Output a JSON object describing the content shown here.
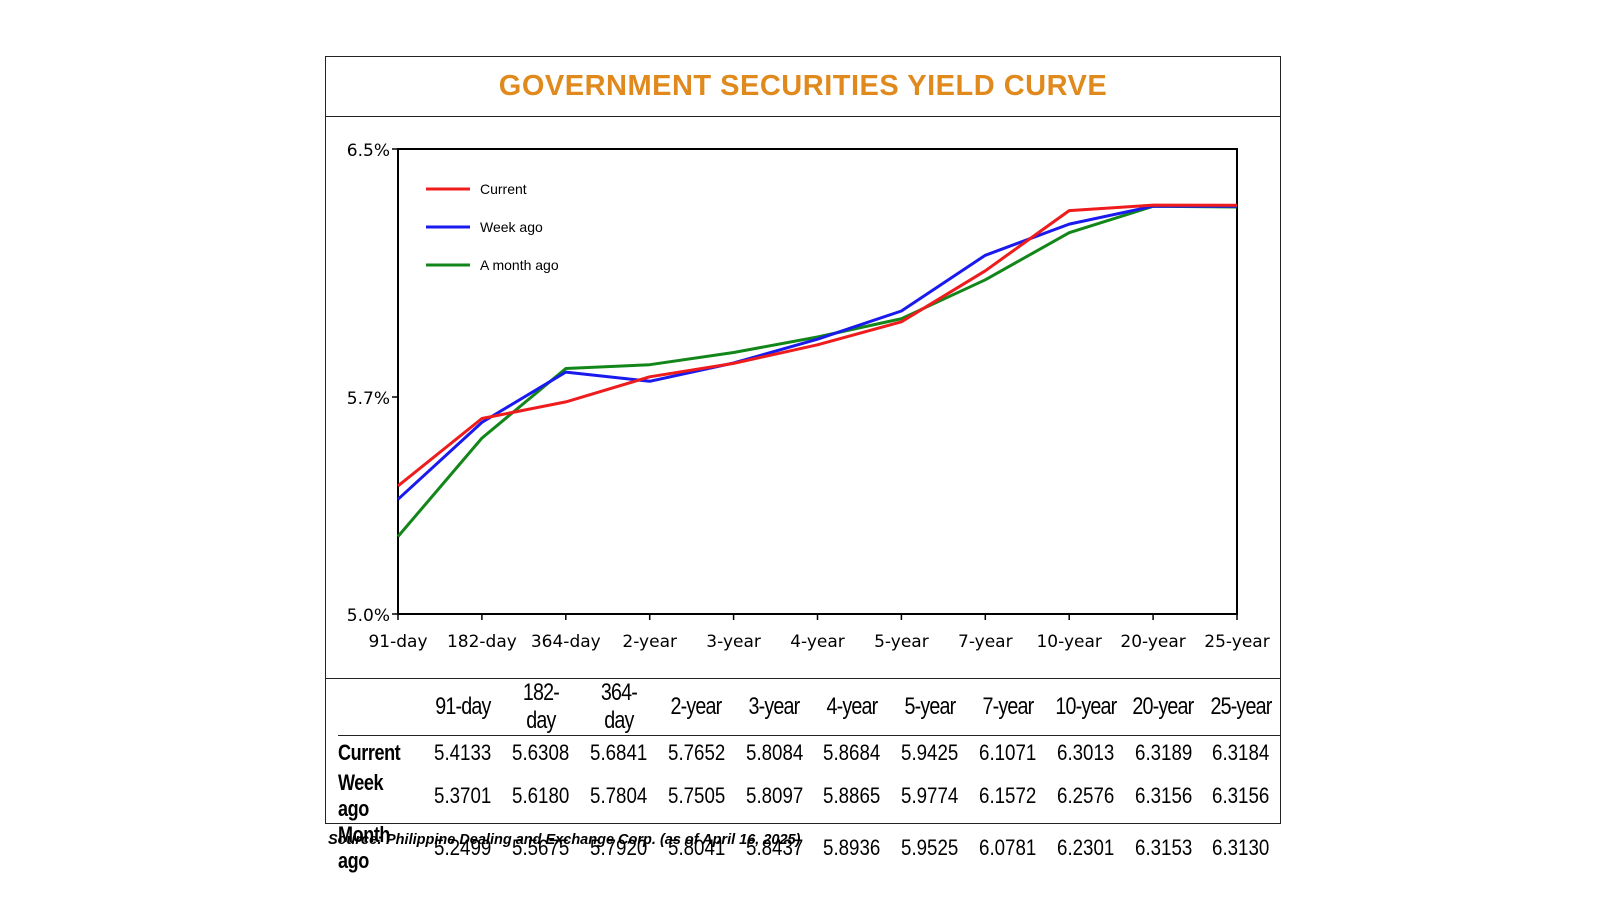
{
  "title": "GOVERNMENT SECURITIES YIELD CURVE",
  "source": "Source: Philippine Dealing and Exchange Corp. (as of April 16, 2025)",
  "chart_data": {
    "type": "line",
    "title": "GOVERNMENT SECURITIES YIELD CURVE",
    "categories": [
      "91-day",
      "182-day",
      "364-day",
      "2-year",
      "3-year",
      "4-year",
      "5-year",
      "7-year",
      "10-year",
      "20-year",
      "25-year"
    ],
    "ylim": [
      5.0,
      6.5
    ],
    "yticks": [
      5.0,
      5.7,
      6.5
    ],
    "ytick_labels": [
      "5.0%",
      "5.7%",
      "6.5%"
    ],
    "legend_position": "top-left",
    "series": [
      {
        "name": "Current",
        "color": "#ee1c1c",
        "values": [
          5.4133,
          5.6308,
          5.6841,
          5.7652,
          5.8084,
          5.8684,
          5.9425,
          6.1071,
          6.3013,
          6.3189,
          6.3184
        ]
      },
      {
        "name": "Week ago",
        "color": "#1a1aee",
        "values": [
          5.3701,
          5.618,
          5.7804,
          5.7505,
          5.8097,
          5.8865,
          5.9774,
          6.1572,
          6.2576,
          6.3156,
          6.3156
        ]
      },
      {
        "name": "A month ago",
        "color": "#13861a",
        "values": [
          5.2499,
          5.5675,
          5.792,
          5.8041,
          5.8437,
          5.8936,
          5.9525,
          6.0781,
          6.2301,
          6.3153,
          6.313
        ]
      }
    ]
  },
  "table": {
    "headers": [
      "",
      "91-day",
      "182-day",
      "364-day",
      "2-year",
      "3-year",
      "4-year",
      "5-year",
      "7-year",
      "10-year",
      "20-year",
      "25-year"
    ],
    "rows": [
      {
        "label": "Current",
        "values": [
          "5.4133",
          "5.6308",
          "5.6841",
          "5.7652",
          "5.8084",
          "5.8684",
          "5.9425",
          "6.1071",
          "6.3013",
          "6.3189",
          "6.3184"
        ]
      },
      {
        "label": "Week ago",
        "values": [
          "5.3701",
          "5.6180",
          "5.7804",
          "5.7505",
          "5.8097",
          "5.8865",
          "5.9774",
          "6.1572",
          "6.2576",
          "6.3156",
          "6.3156"
        ]
      },
      {
        "label": "Month ago",
        "values": [
          "5.2499",
          "5.5675",
          "5.7920",
          "5.8041",
          "5.8437",
          "5.8936",
          "5.9525",
          "6.0781",
          "6.2301",
          "6.3153",
          "6.3130"
        ]
      }
    ]
  }
}
